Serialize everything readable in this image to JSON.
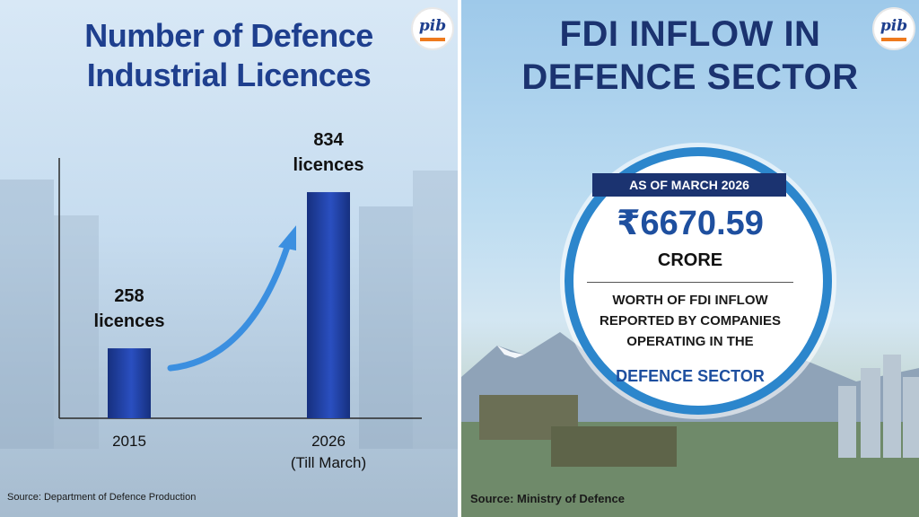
{
  "left_panel": {
    "title_line1": "Number of Defence",
    "title_line2": "Industrial Licences",
    "source": "Source: Department of Defence Production",
    "logo_text": "pib"
  },
  "chart_data": {
    "type": "bar",
    "title": "Number of Defence Industrial Licences",
    "categories": [
      "2015",
      "2026"
    ],
    "category_sublabels": [
      "",
      "(Till March)"
    ],
    "values": [
      258,
      834
    ],
    "data_labels": [
      {
        "number": "258",
        "unit": "licences"
      },
      {
        "number": "834",
        "unit": "licences"
      }
    ],
    "ylim": [
      0,
      960
    ],
    "grid": false,
    "bar_color": "#1f3fa3",
    "arrow_color": "#3b8fe0"
  },
  "right_panel": {
    "title_line1": "FDI INFLOW IN",
    "title_line2": "DEFENCE SECTOR",
    "as_of": "AS OF MARCH 2026",
    "amount": "₹6670.59",
    "unit": "CRORE",
    "desc_line1": "WORTH OF FDI INFLOW",
    "desc_line2": "REPORTED BY COMPANIES",
    "desc_line3": "OPERATING IN THE",
    "sector": "DEFENCE SECTOR",
    "source": "Source: Ministry of Defence",
    "logo_text": "pib"
  }
}
